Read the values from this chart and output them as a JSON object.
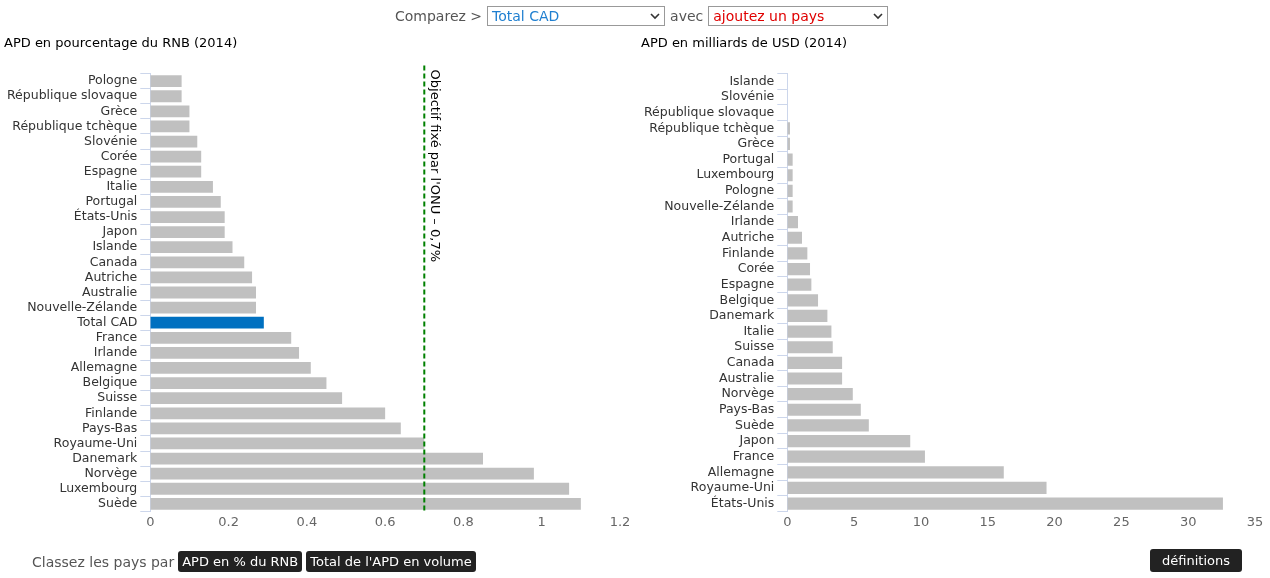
{
  "chart_data": [
    {
      "type": "bar",
      "orientation": "horizontal",
      "title": "APD en pourcentage du RNB (2014)",
      "categories": [
        "Pologne",
        "République slovaque",
        "Grèce",
        "République tchèque",
        "Slovénie",
        "Corée",
        "Espagne",
        "Italie",
        "Portugal",
        "États-Unis",
        "Japon",
        "Islande",
        "Canada",
        "Autriche",
        "Australie",
        "Nouvelle-Zélande",
        "Total CAD",
        "France",
        "Irlande",
        "Allemagne",
        "Belgique",
        "Suisse",
        "Finlande",
        "Pays-Bas",
        "Royaume-Uni",
        "Danemark",
        "Norvège",
        "Luxembourg",
        "Suède"
      ],
      "values": [
        0.08,
        0.08,
        0.1,
        0.1,
        0.12,
        0.13,
        0.13,
        0.16,
        0.18,
        0.19,
        0.19,
        0.21,
        0.24,
        0.26,
        0.27,
        0.27,
        0.29,
        0.36,
        0.38,
        0.41,
        0.45,
        0.49,
        0.6,
        0.64,
        0.7,
        0.85,
        0.98,
        1.07,
        1.1
      ],
      "colors": [
        "#c0c0c0",
        "#c0c0c0",
        "#c0c0c0",
        "#c0c0c0",
        "#c0c0c0",
        "#c0c0c0",
        "#c0c0c0",
        "#c0c0c0",
        "#c0c0c0",
        "#c0c0c0",
        "#c0c0c0",
        "#c0c0c0",
        "#c0c0c0",
        "#c0c0c0",
        "#c0c0c0",
        "#c0c0c0",
        "#0070c0",
        "#c0c0c0",
        "#c0c0c0",
        "#c0c0c0",
        "#c0c0c0",
        "#c0c0c0",
        "#c0c0c0",
        "#c0c0c0",
        "#c0c0c0",
        "#c0c0c0",
        "#c0c0c0",
        "#c0c0c0",
        "#c0c0c0"
      ],
      "xlim": [
        0,
        1.2
      ],
      "xticks": [
        0,
        0.2,
        0.4,
        0.6,
        0.8,
        1,
        1.2
      ],
      "grid": false,
      "legend": false,
      "ref_lines": [
        {
          "axis": "x",
          "value": 0.7,
          "label": "Objectif fixé par l'ONU – 0,7%",
          "color": "#008000",
          "line_style": "dashed"
        }
      ],
      "annotations": [
        "Comparez >",
        "Total CAD",
        "avec",
        "ajoutez un pays",
        "Classez les pays par",
        "APD en % du RNB",
        "Total de l'APD en volume"
      ]
    },
    {
      "type": "bar",
      "orientation": "horizontal",
      "title": "APD en milliards de USD (2014)",
      "categories": [
        "Islande",
        "Slovénie",
        "République slovaque",
        "République tchèque",
        "Grèce",
        "Portugal",
        "Luxembourg",
        "Pologne",
        "Nouvelle-Zélande",
        "Irlande",
        "Autriche",
        "Finlande",
        "Corée",
        "Espagne",
        "Belgique",
        "Danemark",
        "Italie",
        "Suisse",
        "Canada",
        "Australie",
        "Norvège",
        "Pays-Bas",
        "Suède",
        "Japon",
        "France",
        "Allemagne",
        "Royaume-Uni",
        "États-Unis"
      ],
      "values": [
        null,
        null,
        null,
        0.2,
        0.2,
        0.4,
        0.4,
        0.4,
        0.4,
        0.8,
        1.1,
        1.5,
        1.7,
        1.8,
        2.3,
        3.0,
        3.3,
        3.4,
        4.1,
        4.1,
        4.9,
        5.5,
        6.1,
        9.2,
        10.3,
        16.2,
        19.4,
        32.6
      ],
      "color": "#c0c0c0",
      "xlim": [
        0,
        35
      ],
      "xticks": [
        0,
        5,
        10,
        15,
        20,
        25,
        30,
        35
      ],
      "grid": false,
      "legend": false,
      "annotations": [
        "définitions"
      ]
    }
  ]
}
